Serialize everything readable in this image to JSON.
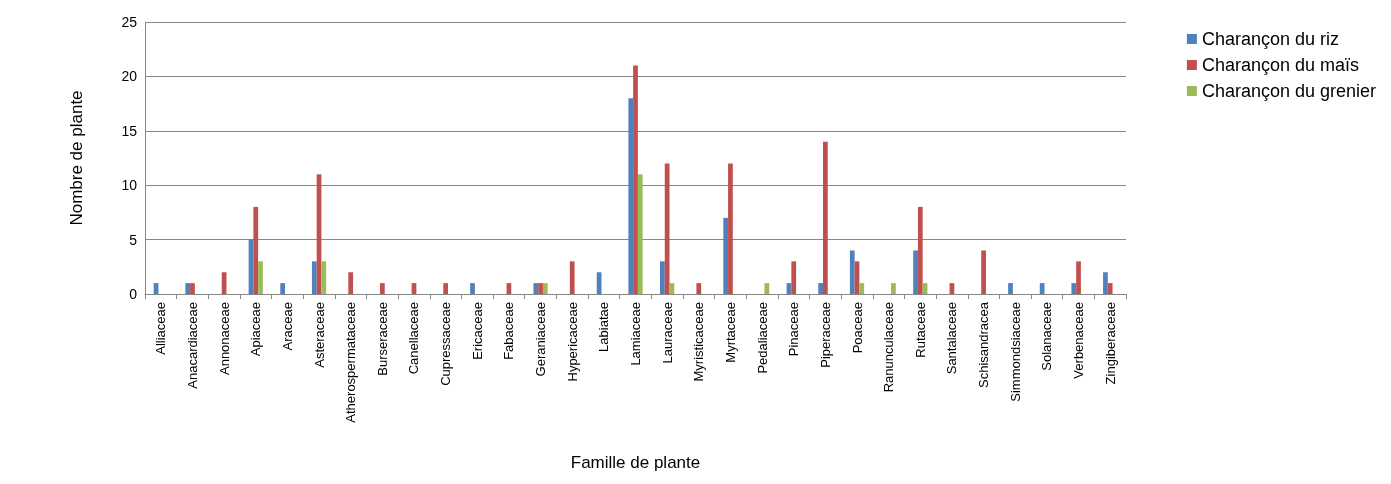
{
  "chart_data": {
    "type": "bar",
    "xlabel": "Famille de plante",
    "ylabel": "Nombre de plante",
    "categories": [
      "Alliaceae",
      "Anacardiaceae",
      "Annonaceae",
      "Apiaceae",
      "Araceae",
      "Asteraceae",
      "Atherospermataceae",
      "Burseraceae",
      "Canellaceae",
      "Cupressaceae",
      "Ericaceae",
      "Fabaceae",
      "Geraniaceae",
      "Hypericaceae",
      "Labiatae",
      "Lamiaceae",
      "Lauraceae",
      "Myristicaceae",
      "Myrtaceae",
      "Pedaliaceae",
      "Pinaceae",
      "Piperaceae",
      "Poaceae",
      "Ranunculaceae",
      "Rutaceae",
      "Santalaceae",
      "Schisandracea",
      "Simmondsiaceae",
      "Solanaceae",
      "Verbenaceae",
      "Zingiberaceae"
    ],
    "series": [
      {
        "name": "Charançon du riz",
        "color": "#4f81bd",
        "values": [
          1,
          1,
          0,
          5,
          1,
          3,
          0,
          0,
          0,
          0,
          1,
          0,
          1,
          0,
          2,
          18,
          3,
          0,
          7,
          0,
          1,
          1,
          4,
          0,
          4,
          0,
          0,
          1,
          1,
          1,
          2
        ]
      },
      {
        "name": "Charançon du maïs",
        "color": "#c0504d",
        "values": [
          0,
          1,
          2,
          8,
          0,
          11,
          2,
          1,
          1,
          1,
          0,
          1,
          1,
          3,
          0,
          21,
          12,
          1,
          12,
          0,
          3,
          14,
          3,
          0,
          8,
          1,
          4,
          0,
          0,
          3,
          1
        ]
      },
      {
        "name": "Charançon du grenier",
        "color": "#9bbb59",
        "values": [
          0,
          0,
          0,
          3,
          0,
          3,
          0,
          0,
          0,
          0,
          0,
          0,
          1,
          0,
          0,
          11,
          1,
          0,
          0,
          1,
          0,
          0,
          1,
          1,
          1,
          0,
          0,
          0,
          0,
          0,
          0
        ]
      }
    ],
    "ylim": [
      0,
      25
    ],
    "yticks": [
      0,
      5,
      10,
      15,
      20,
      25
    ],
    "grid": "y",
    "legend": "top right"
  }
}
